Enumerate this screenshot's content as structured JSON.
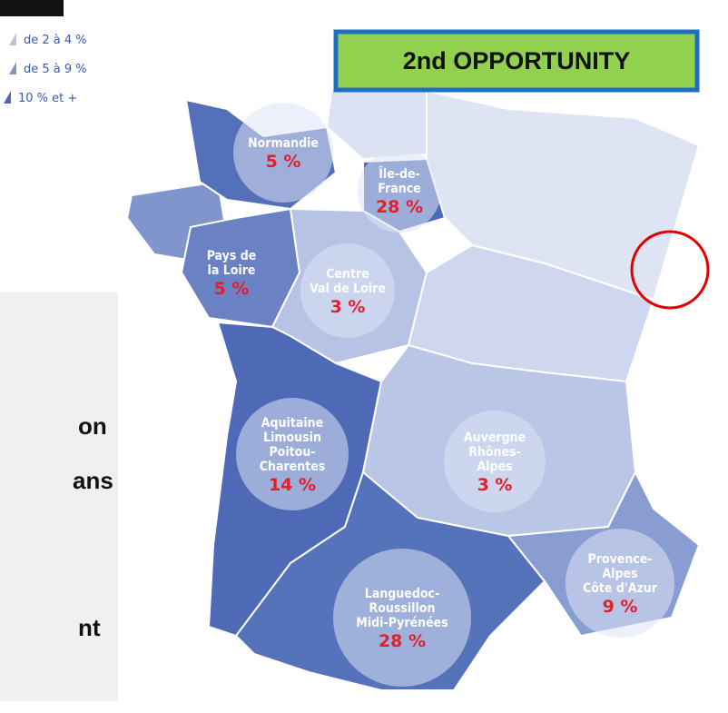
{
  "legend": [
    "de 2 à 4 %",
    "de 5 à 9 %",
    "10 % et +"
  ],
  "badge": "2nd OPPORTUNITY",
  "side_text": [
    "on",
    "ans",
    "nt"
  ],
  "regions": [
    {
      "name": [
        "Normandie"
      ],
      "value": "5 %"
    },
    {
      "name": [
        "Île-de-",
        "France"
      ],
      "value": "28 %"
    },
    {
      "name": [
        "Pays de",
        "la Loire"
      ],
      "value": "5 %"
    },
    {
      "name": [
        "Centre",
        "Val de Loire"
      ],
      "value": "3 %"
    },
    {
      "name": [
        "Aquitaine",
        "Limousin",
        "Poitou-",
        "Charentes"
      ],
      "value": "14 %"
    },
    {
      "name": [
        "Auvergne",
        "Rhônes-",
        "Alpes"
      ],
      "value": "3 %"
    },
    {
      "name": [
        "Languedoc-",
        "Roussillon",
        "Midi-Pyrénées"
      ],
      "value": "28 %"
    },
    {
      "name": [
        "Provence-",
        "Alpes",
        "Côte d'Azur"
      ],
      "value": "9 %"
    }
  ]
}
